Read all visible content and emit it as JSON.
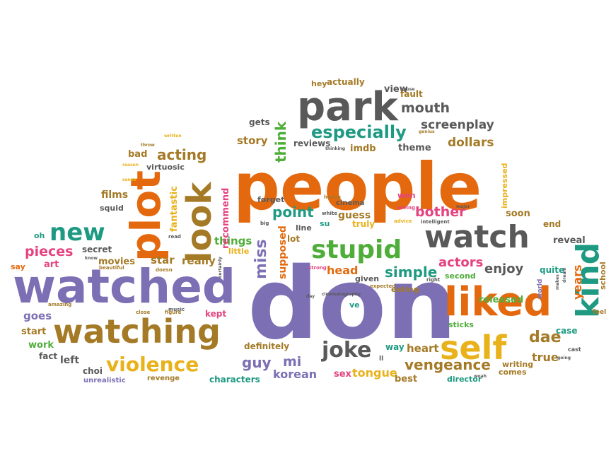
{
  "colors": {
    "orange": "#E4690E",
    "purple": "#7D6FB4",
    "green": "#4FAE3A",
    "teal": "#1F9A82",
    "brown": "#A47A26",
    "gold": "#E9B11A",
    "pink": "#E4437F",
    "gray": "#595959"
  },
  "words": [
    {
      "text": "people",
      "color": "orange"
    },
    {
      "text": "don",
      "color": "purple"
    },
    {
      "text": "watched",
      "color": "purple"
    },
    {
      "text": "watching",
      "color": "brown"
    },
    {
      "text": "park",
      "color": "gray"
    },
    {
      "text": "watch",
      "color": "gray"
    },
    {
      "text": "liked",
      "color": "orange"
    },
    {
      "text": "stupid",
      "color": "green"
    },
    {
      "text": "self",
      "color": "gold"
    },
    {
      "text": "plot",
      "color": "orange"
    },
    {
      "text": "look",
      "color": "brown"
    },
    {
      "text": "new",
      "color": "teal"
    },
    {
      "text": "kind",
      "color": "teal"
    },
    {
      "text": "violence",
      "color": "gold"
    },
    {
      "text": "especially",
      "color": "teal"
    },
    {
      "text": "joke",
      "color": "gray"
    },
    {
      "text": "acting",
      "color": "brown"
    },
    {
      "text": "think",
      "color": "green"
    },
    {
      "text": "mouth",
      "color": "gray"
    },
    {
      "text": "screenplay",
      "color": "gray"
    },
    {
      "text": "point",
      "color": "teal"
    },
    {
      "text": "bother",
      "color": "pink"
    },
    {
      "text": "miss",
      "color": "purple"
    },
    {
      "text": "simple",
      "color": "teal"
    },
    {
      "text": "head",
      "color": "orange"
    },
    {
      "text": "guy",
      "color": "purple"
    },
    {
      "text": "vengeance",
      "color": "brown"
    },
    {
      "text": "dae",
      "color": "brown"
    },
    {
      "text": "pieces",
      "color": "pink"
    },
    {
      "text": "actors",
      "color": "pink"
    },
    {
      "text": "enjoy",
      "color": "gray"
    },
    {
      "text": "really",
      "color": "brown"
    },
    {
      "text": "star",
      "color": "brown"
    },
    {
      "text": "supposed",
      "color": "orange"
    },
    {
      "text": "story",
      "color": "brown"
    },
    {
      "text": "dollars",
      "color": "brown"
    },
    {
      "text": "true",
      "color": "brown"
    },
    {
      "text": "things",
      "color": "green"
    },
    {
      "text": "movies",
      "color": "brown"
    },
    {
      "text": "films",
      "color": "brown"
    },
    {
      "text": "goes",
      "color": "purple"
    },
    {
      "text": "left",
      "color": "gray"
    },
    {
      "text": "years",
      "color": "orange"
    },
    {
      "text": "korean",
      "color": "purple"
    },
    {
      "text": "tongue",
      "color": "gold"
    },
    {
      "text": "heart",
      "color": "brown"
    },
    {
      "text": "recommend",
      "color": "pink"
    },
    {
      "text": "fantastic",
      "color": "gold"
    },
    {
      "text": "mi",
      "color": "purple"
    },
    {
      "text": "theme",
      "color": "gray"
    },
    {
      "text": "guess",
      "color": "brown"
    },
    {
      "text": "reveal",
      "color": "gray"
    },
    {
      "text": "definitely",
      "color": "brown"
    },
    {
      "text": "released",
      "color": "green"
    },
    {
      "text": "quite",
      "color": "teal"
    },
    {
      "text": "sex",
      "color": "pink"
    },
    {
      "text": "bad",
      "color": "brown"
    },
    {
      "text": "imdb",
      "color": "brown"
    },
    {
      "text": "view",
      "color": "gray"
    },
    {
      "text": "gets",
      "color": "gray"
    },
    {
      "text": "reviews",
      "color": "gray"
    },
    {
      "text": "actually",
      "color": "brown"
    },
    {
      "text": "fault",
      "color": "brown"
    },
    {
      "text": "hey",
      "color": "brown"
    },
    {
      "text": "virtuosic",
      "color": "gray"
    },
    {
      "text": "squid",
      "color": "gray"
    },
    {
      "text": "forget",
      "color": "gray"
    },
    {
      "text": "cinema",
      "color": "gray"
    },
    {
      "text": "won",
      "color": "pink"
    },
    {
      "text": "soon",
      "color": "brown"
    },
    {
      "text": "end",
      "color": "brown"
    },
    {
      "text": "secret",
      "color": "gray"
    },
    {
      "text": "art",
      "color": "pink"
    },
    {
      "text": "say",
      "color": "orange"
    },
    {
      "text": "oh",
      "color": "teal"
    },
    {
      "text": "start",
      "color": "brown"
    },
    {
      "text": "work",
      "color": "green"
    },
    {
      "text": "fact",
      "color": "gray"
    },
    {
      "text": "choi",
      "color": "gray"
    },
    {
      "text": "unrealistic",
      "color": "purple"
    },
    {
      "text": "revenge",
      "color": "brown"
    },
    {
      "text": "characters",
      "color": "teal"
    },
    {
      "text": "kept",
      "color": "pink"
    },
    {
      "text": "lot",
      "color": "brown"
    },
    {
      "text": "line",
      "color": "gray"
    },
    {
      "text": "su",
      "color": "teal"
    },
    {
      "text": "truly",
      "color": "gold"
    },
    {
      "text": "given",
      "color": "gray"
    },
    {
      "text": "eating",
      "color": "brown"
    },
    {
      "text": "way",
      "color": "teal"
    },
    {
      "text": "best",
      "color": "brown"
    },
    {
      "text": "director",
      "color": "teal"
    },
    {
      "text": "comes",
      "color": "brown"
    },
    {
      "text": "writing",
      "color": "brown"
    },
    {
      "text": "case",
      "color": "teal"
    },
    {
      "text": "school",
      "color": "brown"
    },
    {
      "text": "second",
      "color": "green"
    },
    {
      "text": "sticks",
      "color": "green"
    },
    {
      "text": "impressed",
      "color": "gold"
    },
    {
      "text": "little",
      "color": "gold"
    },
    {
      "text": "ve",
      "color": "teal"
    },
    {
      "text": "ll",
      "color": "gray"
    },
    {
      "text": "world",
      "color": "purple"
    },
    {
      "text": "feel",
      "color": "brown"
    },
    {
      "text": "cast",
      "color": "gray"
    },
    {
      "text": "amazing",
      "color": "brown"
    },
    {
      "text": "close",
      "color": "brown"
    },
    {
      "text": "figure",
      "color": "brown"
    },
    {
      "text": "music",
      "color": "gray"
    },
    {
      "text": "beautiful",
      "color": "brown"
    },
    {
      "text": "doesn",
      "color": "brown"
    },
    {
      "text": "know",
      "color": "gray"
    },
    {
      "text": "read",
      "color": "gray"
    },
    {
      "text": "certainly",
      "color": "gray"
    },
    {
      "text": "big",
      "color": "gray"
    },
    {
      "text": "strong",
      "color": "pink"
    },
    {
      "text": "cinematography",
      "color": "gray"
    },
    {
      "text": "expected",
      "color": "brown"
    },
    {
      "text": "advice",
      "color": "gold"
    },
    {
      "text": "intelligent",
      "color": "gray"
    },
    {
      "text": "major",
      "color": "gray"
    },
    {
      "text": "seeing",
      "color": "pink"
    },
    {
      "text": "white",
      "color": "gray"
    },
    {
      "text": "haven",
      "color": "brown"
    },
    {
      "text": "written",
      "color": "gold"
    },
    {
      "text": "throw",
      "color": "brown"
    },
    {
      "text": "reason",
      "color": "gold"
    },
    {
      "text": "sense",
      "color": "gold"
    },
    {
      "text": "thinking",
      "color": "gray"
    },
    {
      "text": "genius",
      "color": "brown"
    },
    {
      "text": "cause",
      "color": "gray"
    },
    {
      "text": "right",
      "color": "gray"
    },
    {
      "text": "day",
      "color": "gray"
    },
    {
      "text": "going",
      "color": "gray"
    },
    {
      "text": "woah",
      "color": "gray"
    },
    {
      "text": "makes",
      "color": "gray"
    },
    {
      "text": "dream",
      "color": "gray"
    }
  ]
}
